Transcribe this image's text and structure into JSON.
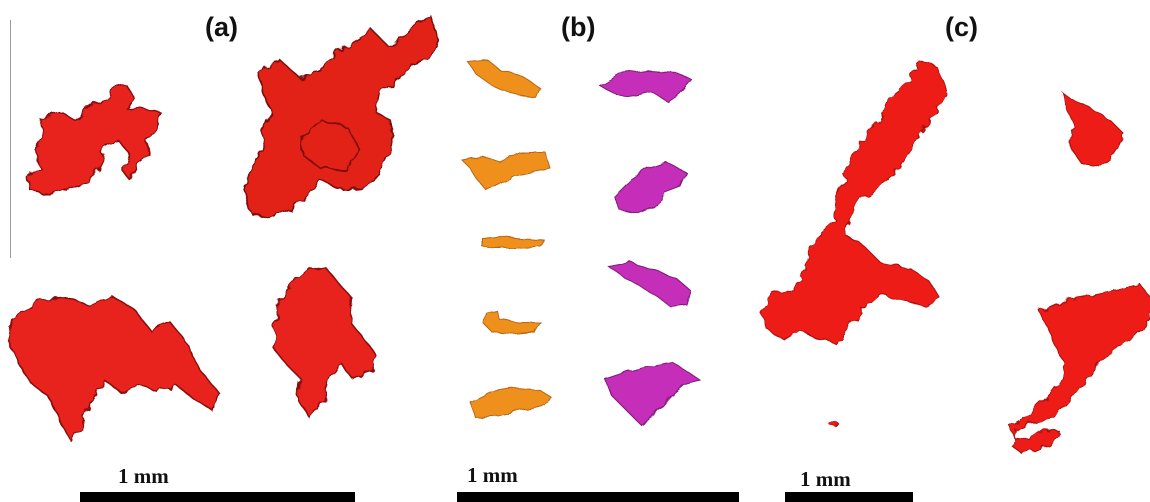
{
  "panels": [
    {
      "label": "(a)",
      "scale_label": "1 mm"
    },
    {
      "label": "(b)",
      "scale_label": "1 mm"
    },
    {
      "label": "(c)",
      "scale_label": "1 mm"
    }
  ],
  "colors": {
    "panel_a_particles": "#e8231f",
    "panel_a_shadow": "#8a0d0d",
    "panel_b_left": "#f0901c",
    "panel_b_right": "#c42fb8",
    "panel_c_particles": "#ee1c16",
    "scale_bar": "#000000"
  }
}
